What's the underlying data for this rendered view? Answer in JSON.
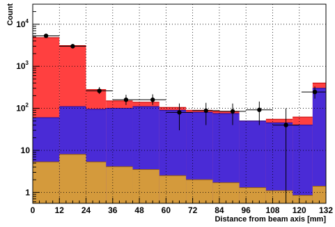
{
  "chart_data": {
    "type": "bar",
    "xlabel": "Distance from beam axis [mm]",
    "ylabel": "Count",
    "xlim": [
      0,
      132
    ],
    "ylim": [
      0.55,
      30000
    ],
    "y_scale": "log",
    "grid": true,
    "x_ticks": [
      0,
      12,
      24,
      36,
      48,
      60,
      72,
      84,
      96,
      108,
      120,
      132
    ],
    "x_tick_labels": [
      "0",
      "12",
      "24",
      "36",
      "48",
      "60",
      "72",
      "84",
      "96",
      "108",
      "120",
      "132"
    ],
    "y_ticks": [
      1,
      10,
      100,
      1000,
      10000
    ],
    "y_tick_labels": [
      {
        "base": "1",
        "exp": ""
      },
      {
        "base": "10",
        "exp": ""
      },
      {
        "base": "10",
        "exp": "2"
      },
      {
        "base": "10",
        "exp": "3"
      },
      {
        "base": "10",
        "exp": "4"
      }
    ],
    "bin_edges": [
      0,
      12,
      24,
      33,
      45,
      57,
      69,
      81,
      93,
      105,
      117,
      126,
      135
    ],
    "series": [
      {
        "role": "stack_total",
        "color": "#ff4040",
        "values": [
          4800,
          3100,
          280,
          150,
          140,
          105,
          90,
          85,
          50,
          55,
          62,
          400
        ]
      },
      {
        "role": "stack_middle",
        "color": "#4a2bd6",
        "values": [
          60,
          110,
          95,
          100,
          110,
          90,
          80,
          75,
          50,
          45,
          40,
          300
        ]
      },
      {
        "role": "stack_bottom",
        "color": "#d49a3c",
        "values": [
          5.3,
          8,
          5.3,
          4.1,
          3.5,
          2.5,
          2,
          1.7,
          1.3,
          1.1,
          0.85,
          1.4
        ]
      },
      {
        "role": "data_points",
        "color": "#000000",
        "x": [
          6,
          18,
          30,
          42,
          54,
          66,
          78,
          90,
          102,
          114,
          127
        ],
        "y": [
          5300,
          3000,
          260,
          160,
          160,
          80,
          88,
          85,
          92,
          40,
          245
        ],
        "err_low": [
          5000,
          2800,
          220,
          120,
          120,
          30,
          40,
          40,
          40,
          0.1,
          170
        ],
        "err_high": [
          5700,
          3300,
          320,
          210,
          215,
          130,
          135,
          130,
          145,
          100,
          330
        ],
        "x_err": [
          6,
          6,
          6,
          6,
          6,
          6,
          6,
          6,
          6,
          6,
          6
        ]
      }
    ]
  }
}
